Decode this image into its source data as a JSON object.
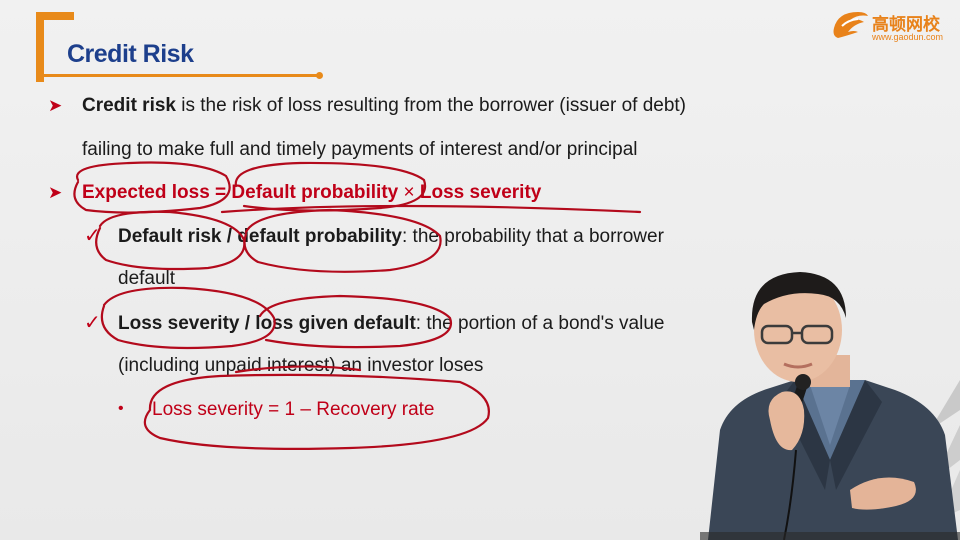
{
  "slide": {
    "title": "Credit Risk",
    "logo": {
      "cn": "高顿网校",
      "url": "www.gaodun.com"
    },
    "bullets": [
      {
        "bold": "Credit risk",
        "text1": " is the risk of loss resulting from the borrower (issuer of debt)",
        "text2": "failing to make full and timely payments of interest and/or principal"
      },
      {
        "formula_a": "Expected loss = Default probability",
        "formula_times": " × ",
        "formula_b": "Loss severity"
      }
    ],
    "sub": [
      {
        "bold": "Default risk / default probability",
        "text1": ": the probability that a borrower",
        "text2": "default"
      },
      {
        "bold": "Loss severity / loss given default",
        "text1": ": the portion of a bond's value",
        "text2": "(including unpaid interest) an investor loses"
      }
    ],
    "subsub": "Loss severity = 1 – Recovery rate"
  },
  "colors": {
    "title": "#1d3f8c",
    "accent": "#e88a1a",
    "red": "#c00018",
    "text": "#1b1b1b"
  },
  "icons": {
    "bullet": "arrow-bullet-icon",
    "check": "check-bullet-icon",
    "dot": "dot-bullet-icon",
    "logo": "gaodun-logo-icon"
  }
}
